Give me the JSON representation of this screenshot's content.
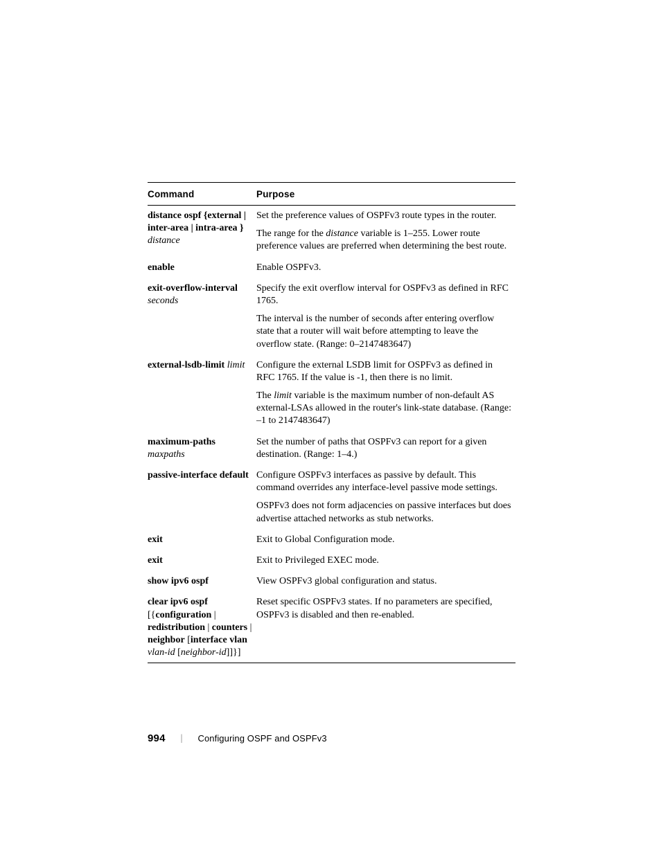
{
  "page": {
    "number": "994",
    "chapter": "Configuring OSPF and OSPFv3"
  },
  "table": {
    "headers": {
      "command": "Command",
      "purpose": "Purpose"
    },
    "rows": [
      {
        "cmd_parts": [
          {
            "t": "distance ospf {external | inter-area | intra-area } ",
            "b": true
          },
          {
            "t": "distance",
            "i": true
          }
        ],
        "purpose": [
          "Set the preference values of OSPFv3 route types in the router.",
          [
            {
              "t": "The range for the "
            },
            {
              "t": "distance",
              "i": true
            },
            {
              "t": " variable is 1–255. Lower route preference values are preferred when determining the best route."
            }
          ]
        ]
      },
      {
        "cmd_parts": [
          {
            "t": "enable",
            "b": true
          }
        ],
        "purpose": [
          "Enable OSPFv3."
        ]
      },
      {
        "cmd_parts": [
          {
            "t": "exit-overflow-interval",
            "b": true
          },
          {
            "t": " "
          },
          {
            "t": "seconds",
            "i": true
          }
        ],
        "purpose": [
          "Specify the exit overflow interval for OSPFv3 as defined in RFC 1765.",
          "The interval is the number of seconds after entering overflow state that a router will wait before attempting to leave the overflow state. (Range: 0–2147483647)"
        ]
      },
      {
        "cmd_parts": [
          {
            "t": "external-lsdb-limit ",
            "b": true
          },
          {
            "t": "limit",
            "i": true
          }
        ],
        "purpose": [
          "Configure the external LSDB limit for OSPFv3 as defined in RFC 1765. If the value is -1, then there is no limit.",
          [
            {
              "t": "The "
            },
            {
              "t": "limit",
              "i": true
            },
            {
              "t": " variable is the maximum number of non-default AS external-LSAs allowed in the router's link-state database. (Range: –1 to 2147483647)"
            }
          ]
        ]
      },
      {
        "cmd_parts": [
          {
            "t": "maximum-paths",
            "b": true
          },
          {
            "t": " "
          },
          {
            "t": "maxpaths",
            "i": true
          }
        ],
        "purpose": [
          "Set the number of paths that OSPFv3 can report for a given destination. (Range: 1–4.)"
        ]
      },
      {
        "cmd_parts": [
          {
            "t": "passive-interface default",
            "b": true
          }
        ],
        "purpose": [
          "Configure OSPFv3 interfaces as passive by default. This command overrides any interface-level passive mode settings.",
          "OSPFv3 does not form adjacencies on passive interfaces but does advertise attached networks as stub networks."
        ]
      },
      {
        "cmd_parts": [
          {
            "t": "exit",
            "b": true
          }
        ],
        "purpose": [
          "Exit to Global Configuration mode."
        ]
      },
      {
        "cmd_parts": [
          {
            "t": "exit",
            "b": true
          }
        ],
        "purpose": [
          "Exit to Privileged EXEC mode."
        ]
      },
      {
        "cmd_parts": [
          {
            "t": "show ipv6 ospf",
            "b": true
          }
        ],
        "purpose": [
          "View OSPFv3 global configuration and status."
        ]
      },
      {
        "cmd_parts": [
          {
            "t": "clear ipv6 ospf",
            "b": true
          },
          {
            "t": " [{"
          },
          {
            "t": "configuration",
            "b": true
          },
          {
            "t": " | "
          },
          {
            "t": "redistribution",
            "b": true
          },
          {
            "t": " | "
          },
          {
            "t": "counters",
            "b": true
          },
          {
            "t": " | "
          },
          {
            "t": "neighbor",
            "b": true
          },
          {
            "t": " ["
          },
          {
            "t": "interface vlan",
            "b": true
          },
          {
            "t": " "
          },
          {
            "t": "vlan-id",
            "i": true
          },
          {
            "t": " ["
          },
          {
            "t": "neighbor-id",
            "i": true
          },
          {
            "t": "]]}]"
          }
        ],
        "purpose": [
          "Reset specific OSPFv3 states. If no parameters are specified, OSPFv3 is disabled and then re-enabled."
        ]
      }
    ]
  }
}
